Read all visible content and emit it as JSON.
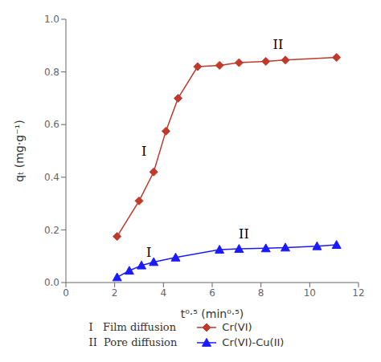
{
  "chart_data": {
    "type": "line",
    "xlabel": "t⁰·⁵ (min⁰·⁵)",
    "ylabel": "qₜ (mg·g⁻¹)",
    "xlim": [
      0,
      12
    ],
    "ylim": [
      0,
      1.0
    ],
    "xticks": [
      0,
      2,
      4,
      6,
      8,
      10,
      12
    ],
    "yticks": [
      {
        "value": 0,
        "label": "0.0"
      },
      0.2,
      0.4,
      0.6,
      0.8,
      {
        "value": 1,
        "label": "1.0"
      }
    ],
    "grid": false,
    "legend": "bottom",
    "legend_notes": [
      "I   Film diffusion",
      "II  Pore diffusion"
    ],
    "series": [
      {
        "name": "Cr(VI)",
        "color": "#c0392b",
        "marker": "diamond",
        "line_style": "solid",
        "x": [
          2.1,
          3.0,
          3.6,
          4.1,
          4.6,
          5.4,
          6.3,
          7.1,
          8.2,
          9.0,
          11.1
        ],
        "values": [
          0.175,
          0.31,
          0.42,
          0.575,
          0.7,
          0.82,
          0.825,
          0.835,
          0.84,
          0.845,
          0.855
        ]
      },
      {
        "name": "Cr(VI)-Cu(II)",
        "color": "#1a1aff",
        "marker": "triangle",
        "line_style": "solid",
        "x": [
          2.1,
          2.6,
          3.1,
          3.6,
          4.5,
          6.3,
          7.1,
          8.2,
          9.0,
          10.3,
          11.1
        ],
        "values": [
          0.02,
          0.045,
          0.065,
          0.078,
          0.095,
          0.125,
          0.128,
          0.13,
          0.133,
          0.138,
          0.143
        ]
      }
    ],
    "annotations": [
      {
        "text": "I",
        "x": 3.2,
        "y": 0.5
      },
      {
        "text": "II",
        "x": 8.7,
        "y": 0.905
      },
      {
        "text": "I",
        "x": 3.4,
        "y": 0.115
      },
      {
        "text": "II",
        "x": 7.3,
        "y": 0.185
      }
    ]
  }
}
